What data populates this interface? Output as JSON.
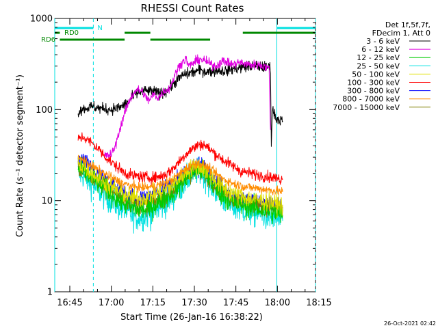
{
  "chart_data": {
    "type": "line",
    "title": "RHESSI Count Rates",
    "xlabel": "Start Time (26-Jan-16 16:38:22)",
    "ylabel": "Count Rate (s⁻¹ detector segment⁻¹)",
    "y_scale": "log",
    "ylim": [
      1,
      1000
    ],
    "xlim_minutes_from_1600": [
      38.4,
      79.0
    ],
    "x_ticks": [
      {
        "label": "16:45",
        "t": 45
      },
      {
        "label": "17:00",
        "t": 60
      },
      {
        "label": "17:15",
        "t": 75
      },
      {
        "label": "17:30",
        "t": 90
      },
      {
        "label": "17:45",
        "t": 105
      },
      {
        "label": "18:00",
        "t": 120
      },
      {
        "label": "18:15",
        "t": 135
      }
    ],
    "y_ticks": [
      {
        "label": "1",
        "v": 1
      },
      {
        "label": "10",
        "v": 10
      },
      {
        "label": "100",
        "v": 100
      },
      {
        "label": "1000",
        "v": 1000
      }
    ],
    "legend_header": [
      "Det 1f,5f,7f,",
      "FDecim 1, Att 0"
    ],
    "legend_placement": "right",
    "timestamp": "26-Oct-2021 02:42",
    "series": [
      {
        "name": "3 - 6 keV",
        "color": "#000000",
        "noise": 0.06,
        "points": [
          [
            48,
            95
          ],
          [
            49,
            100
          ],
          [
            53,
            108
          ],
          [
            56,
            103
          ],
          [
            60,
            100
          ],
          [
            63,
            105
          ],
          [
            66,
            120
          ],
          [
            69,
            150
          ],
          [
            72,
            160
          ],
          [
            75,
            158
          ],
          [
            78,
            150
          ],
          [
            80,
            160
          ],
          [
            83,
            200
          ],
          [
            86,
            240
          ],
          [
            89,
            255
          ],
          [
            92,
            270
          ],
          [
            95,
            260
          ],
          [
            98,
            270
          ],
          [
            101,
            265
          ],
          [
            104,
            280
          ],
          [
            107,
            290
          ],
          [
            110,
            300
          ],
          [
            113,
            300
          ],
          [
            116,
            290
          ],
          [
            117.5,
            300
          ],
          [
            117.8,
            40
          ],
          [
            118.2,
            100
          ],
          [
            119.6,
            80
          ],
          [
            121.9,
            75
          ]
        ]
      },
      {
        "name": "6 - 12 keV",
        "color": "#e000e0",
        "noise": 0.05,
        "points": [
          [
            57.5,
            31
          ],
          [
            60,
            32
          ],
          [
            61.5,
            40
          ],
          [
            63,
            60
          ],
          [
            65,
            95
          ],
          [
            67,
            135
          ],
          [
            69,
            165
          ],
          [
            71,
            160
          ],
          [
            72.5,
            135
          ],
          [
            74,
            125
          ],
          [
            75,
            148
          ],
          [
            77,
            135
          ],
          [
            79,
            160
          ],
          [
            81,
            170
          ],
          [
            83,
            240
          ],
          [
            85,
            320
          ],
          [
            87,
            360
          ],
          [
            88,
            300
          ],
          [
            90,
            330
          ],
          [
            92,
            360
          ],
          [
            94,
            340
          ],
          [
            96,
            315
          ],
          [
            98,
            300
          ],
          [
            100,
            340
          ],
          [
            102,
            330
          ],
          [
            104,
            310
          ],
          [
            106,
            330
          ],
          [
            108,
            320
          ],
          [
            110,
            310
          ],
          [
            113,
            310
          ],
          [
            115,
            300
          ],
          [
            117,
            280
          ],
          [
            117.5,
            60
          ]
        ]
      },
      {
        "name": "12 - 25 keV",
        "color": "#00cc00",
        "noise": 0.12,
        "points": [
          [
            48,
            22
          ],
          [
            50,
            21
          ],
          [
            53,
            18
          ],
          [
            56,
            15
          ],
          [
            60,
            12
          ],
          [
            63,
            10
          ],
          [
            67,
            8.5
          ],
          [
            70,
            8
          ],
          [
            73,
            8
          ],
          [
            76,
            9
          ],
          [
            79,
            10.5
          ],
          [
            82,
            12
          ],
          [
            85,
            15
          ],
          [
            88,
            19
          ],
          [
            91,
            22
          ],
          [
            93,
            21
          ],
          [
            95,
            18
          ],
          [
            98,
            13.5
          ],
          [
            101,
            11
          ],
          [
            104,
            9.5
          ],
          [
            107,
            9
          ],
          [
            110,
            8.5
          ],
          [
            114,
            8
          ],
          [
            118,
            7.5
          ],
          [
            121.9,
            7
          ]
        ]
      },
      {
        "name": "25 - 50 keV",
        "color": "#00e0e0",
        "noise": 0.15,
        "points": [
          [
            48,
            20
          ],
          [
            50,
            19
          ],
          [
            53,
            15
          ],
          [
            56,
            12.5
          ],
          [
            60,
            10
          ],
          [
            63,
            8.5
          ],
          [
            67,
            7
          ],
          [
            70,
            6.5
          ],
          [
            73,
            7
          ],
          [
            76,
            7.8
          ],
          [
            79,
            9
          ],
          [
            82,
            11
          ],
          [
            85,
            14
          ],
          [
            88,
            18
          ],
          [
            91,
            21
          ],
          [
            93,
            20
          ],
          [
            95,
            17
          ],
          [
            98,
            12.5
          ],
          [
            101,
            10
          ],
          [
            104,
            8.5
          ],
          [
            107,
            8
          ],
          [
            110,
            7.5
          ],
          [
            114,
            7
          ],
          [
            118,
            6.5
          ],
          [
            121.9,
            6
          ]
        ]
      },
      {
        "name": "50 - 100 keV",
        "color": "#e0e000",
        "noise": 0.1,
        "points": [
          [
            48,
            25
          ],
          [
            50,
            24
          ],
          [
            53,
            20
          ],
          [
            56,
            17
          ],
          [
            60,
            14
          ],
          [
            63,
            12.5
          ],
          [
            67,
            11
          ],
          [
            70,
            10.5
          ],
          [
            73,
            11
          ],
          [
            76,
            12
          ],
          [
            79,
            13
          ],
          [
            82,
            14.5
          ],
          [
            85,
            18
          ],
          [
            88,
            22
          ],
          [
            91,
            24
          ],
          [
            93,
            23
          ],
          [
            95,
            20
          ],
          [
            98,
            16
          ],
          [
            101,
            13.5
          ],
          [
            104,
            12
          ],
          [
            107,
            11
          ],
          [
            110,
            10.5
          ],
          [
            114,
            10
          ],
          [
            118,
            9.5
          ],
          [
            121.9,
            9
          ]
        ]
      },
      {
        "name": "100 - 300 keV",
        "color": "#ff0000",
        "noise": 0.06,
        "points": [
          [
            48,
            48
          ],
          [
            50,
            50
          ],
          [
            52,
            45
          ],
          [
            55,
            38
          ],
          [
            58,
            30
          ],
          [
            61,
            25
          ],
          [
            64,
            21
          ],
          [
            67,
            19
          ],
          [
            70,
            18.5
          ],
          [
            73,
            18
          ],
          [
            76,
            18
          ],
          [
            79,
            19
          ],
          [
            82,
            22
          ],
          [
            85,
            28
          ],
          [
            88,
            35
          ],
          [
            91,
            40
          ],
          [
            93,
            42
          ],
          [
            95,
            38
          ],
          [
            98,
            32
          ],
          [
            101,
            27
          ],
          [
            104,
            24
          ],
          [
            107,
            21
          ],
          [
            110,
            20
          ],
          [
            114,
            19
          ],
          [
            118,
            18
          ],
          [
            121.9,
            17
          ]
        ]
      },
      {
        "name": "300 - 800 keV",
        "color": "#0000ff",
        "noise": 0.1,
        "points": [
          [
            48,
            28
          ],
          [
            50,
            27
          ],
          [
            53,
            22
          ],
          [
            56,
            18
          ],
          [
            60,
            15
          ],
          [
            63,
            13
          ],
          [
            67,
            11
          ],
          [
            70,
            10.5
          ],
          [
            73,
            11
          ],
          [
            76,
            12
          ],
          [
            79,
            13.5
          ],
          [
            82,
            15
          ],
          [
            85,
            18.5
          ],
          [
            88,
            22
          ],
          [
            91,
            24
          ],
          [
            93,
            23
          ],
          [
            95,
            20
          ],
          [
            98,
            16
          ],
          [
            101,
            13
          ],
          [
            104,
            11.5
          ],
          [
            107,
            10.5
          ],
          [
            110,
            10
          ],
          [
            114,
            9.5
          ],
          [
            118,
            9
          ],
          [
            121.9,
            8.5
          ]
        ]
      },
      {
        "name": "800 - 7000 keV",
        "color": "#ff8c00",
        "noise": 0.05,
        "points": [
          [
            48,
            29
          ],
          [
            50,
            28
          ],
          [
            53,
            24
          ],
          [
            56,
            21
          ],
          [
            60,
            18
          ],
          [
            63,
            16
          ],
          [
            67,
            14.5
          ],
          [
            70,
            14
          ],
          [
            73,
            14
          ],
          [
            76,
            14.5
          ],
          [
            79,
            15.5
          ],
          [
            82,
            17
          ],
          [
            85,
            20
          ],
          [
            88,
            23.5
          ],
          [
            91,
            26
          ],
          [
            93,
            25
          ],
          [
            95,
            23
          ],
          [
            98,
            19.5
          ],
          [
            101,
            17
          ],
          [
            104,
            15.5
          ],
          [
            107,
            14.5
          ],
          [
            110,
            14
          ],
          [
            114,
            13.5
          ],
          [
            118,
            13
          ],
          [
            121.9,
            12.5
          ]
        ]
      },
      {
        "name": "7000 - 15000 keV",
        "color": "#808000",
        "noise": 0.1,
        "points": [
          [
            48,
            22
          ],
          [
            50,
            21
          ],
          [
            53,
            18
          ],
          [
            56,
            15
          ],
          [
            60,
            12.5
          ],
          [
            63,
            11
          ],
          [
            67,
            9.5
          ],
          [
            70,
            9
          ],
          [
            73,
            9
          ],
          [
            76,
            10
          ],
          [
            79,
            11
          ],
          [
            82,
            12.5
          ],
          [
            85,
            15.5
          ],
          [
            88,
            19
          ],
          [
            91,
            21.5
          ],
          [
            93,
            20.5
          ],
          [
            95,
            18
          ],
          [
            98,
            14.5
          ],
          [
            101,
            12
          ],
          [
            104,
            10.5
          ],
          [
            107,
            10
          ],
          [
            110,
            9.5
          ],
          [
            114,
            9
          ],
          [
            118,
            8.5
          ],
          [
            121.9,
            8
          ]
        ]
      }
    ],
    "flag_bars": [
      {
        "label": "",
        "color": "#00e0e0",
        "row": 0,
        "segments": [
          [
            38.4,
            53.5
          ],
          [
            119.8,
            135
          ]
        ]
      },
      {
        "label": "N",
        "color": "#00e0e0",
        "row": 0,
        "segments": []
      },
      {
        "label": "RD0",
        "color": "#008800",
        "row": 1,
        "segments": [
          [
            38.4,
            41.4
          ],
          [
            64.8,
            74.1
          ],
          [
            107.5,
            135
          ]
        ]
      },
      {
        "label": "RD6",
        "color": "#008800",
        "row": 2,
        "segments": [
          [
            41.4,
            64.8
          ],
          [
            74.1,
            95.7
          ]
        ]
      }
    ],
    "vertical_lines": [
      {
        "t": 39.2,
        "color": "#00e0e0",
        "style": "solid"
      },
      {
        "t": 53.5,
        "color": "#00e0e0",
        "style": "dashed"
      },
      {
        "t": 119.8,
        "color": "#00e0e0",
        "style": "solid"
      },
      {
        "t": 134.8,
        "color": "#00e0e0",
        "style": "dashed"
      }
    ]
  }
}
